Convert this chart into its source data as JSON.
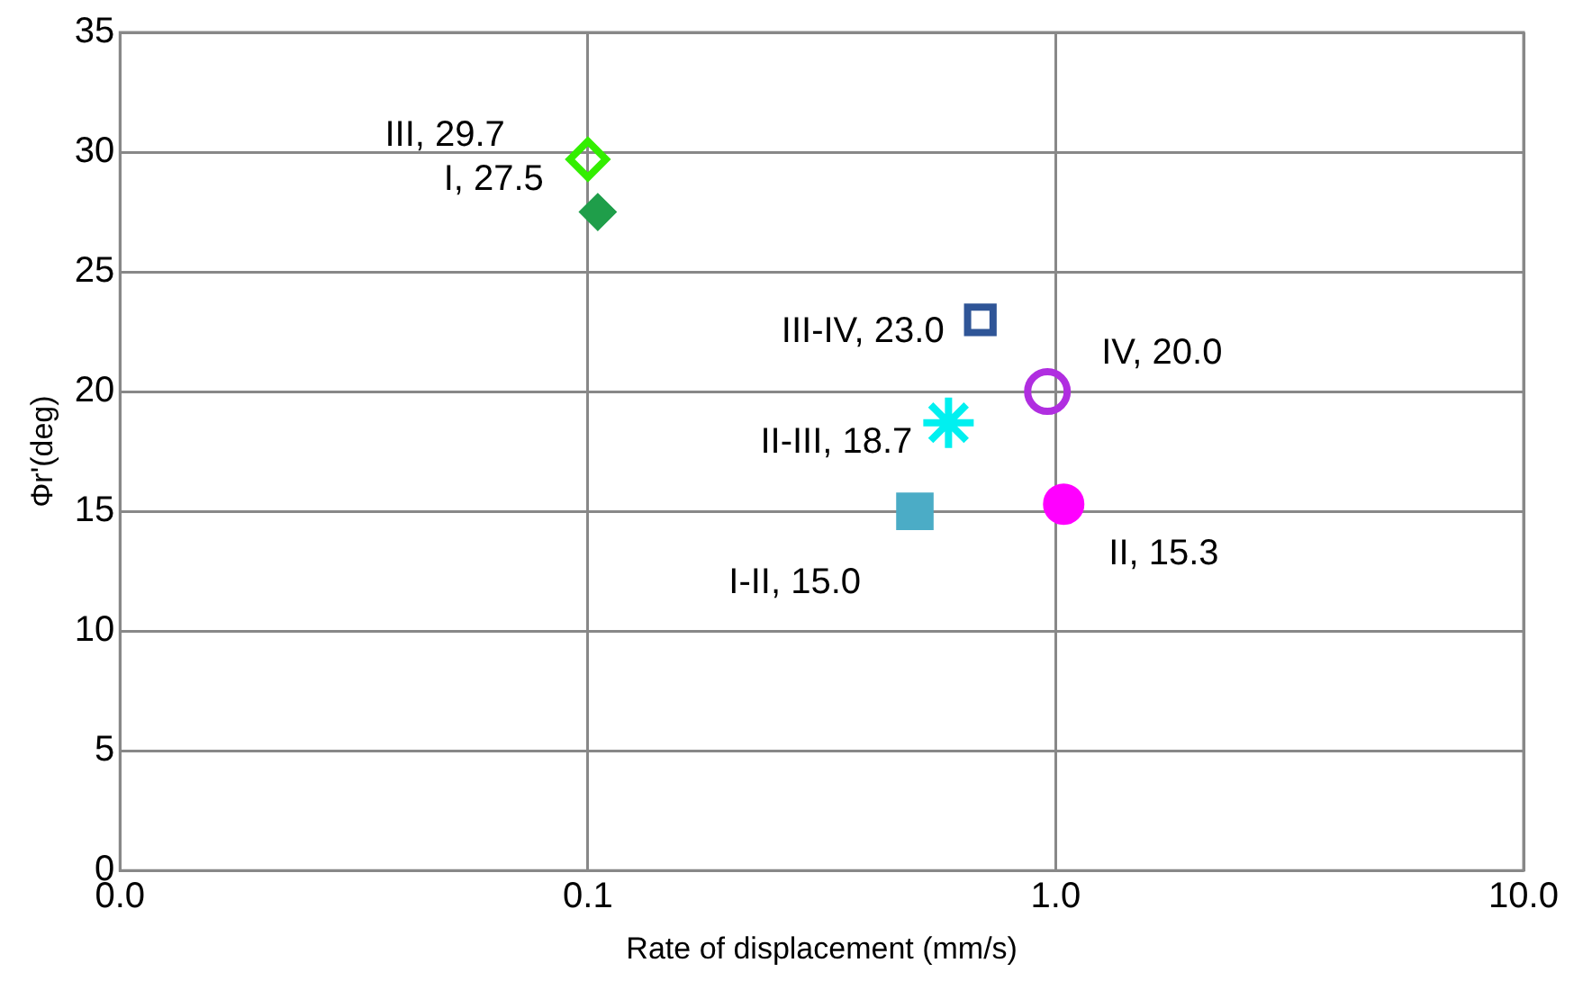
{
  "chart_data": {
    "type": "scatter",
    "xlabel": "Rate of displacement (mm/s)",
    "ylabel": "Φr'(deg)",
    "log": "x",
    "xlim": [
      0.01,
      10
    ],
    "xticks": [
      {
        "value": 0.01,
        "label": "0.0"
      },
      {
        "value": 0.1,
        "label": "0.1"
      },
      {
        "value": 1,
        "label": "1.0"
      },
      {
        "value": 10,
        "label": "10.0"
      }
    ],
    "ylim": [
      0,
      35
    ],
    "yticks": [
      0,
      5,
      10,
      15,
      20,
      25,
      30,
      35
    ],
    "grid": true,
    "legend": false,
    "series": [
      {
        "color": "#33ee00",
        "marker": "diamond-open",
        "x": [
          0.1
        ],
        "values": [
          29.7
        ],
        "value_labels": [
          "III, 29.7"
        ]
      },
      {
        "color": "#1f9e4a",
        "marker": "diamond",
        "x": [
          0.105
        ],
        "values": [
          27.5
        ],
        "value_labels": [
          "I, 27.5"
        ]
      },
      {
        "color": "#2f5597",
        "marker": "square-open",
        "x": [
          0.69
        ],
        "values": [
          23.0
        ],
        "value_labels": [
          "III-IV, 23.0"
        ]
      },
      {
        "color": "#b02ee0",
        "marker": "circle-open",
        "x": [
          0.96
        ],
        "values": [
          20.0
        ],
        "value_labels": [
          "IV, 20.0"
        ]
      },
      {
        "color": "#00f0f0",
        "marker": "cross",
        "x": [
          0.59
        ],
        "values": [
          18.7
        ],
        "value_labels": [
          "II-III, 18.7"
        ]
      },
      {
        "color": "#4bacc6",
        "marker": "square",
        "x": [
          0.5
        ],
        "values": [
          15.0
        ],
        "value_labels": [
          "I-II, 15.0"
        ]
      },
      {
        "color": "#ff00ff",
        "marker": "circle",
        "x": [
          1.04
        ],
        "values": [
          15.3
        ],
        "value_labels": [
          "II, 15.3"
        ]
      }
    ]
  }
}
